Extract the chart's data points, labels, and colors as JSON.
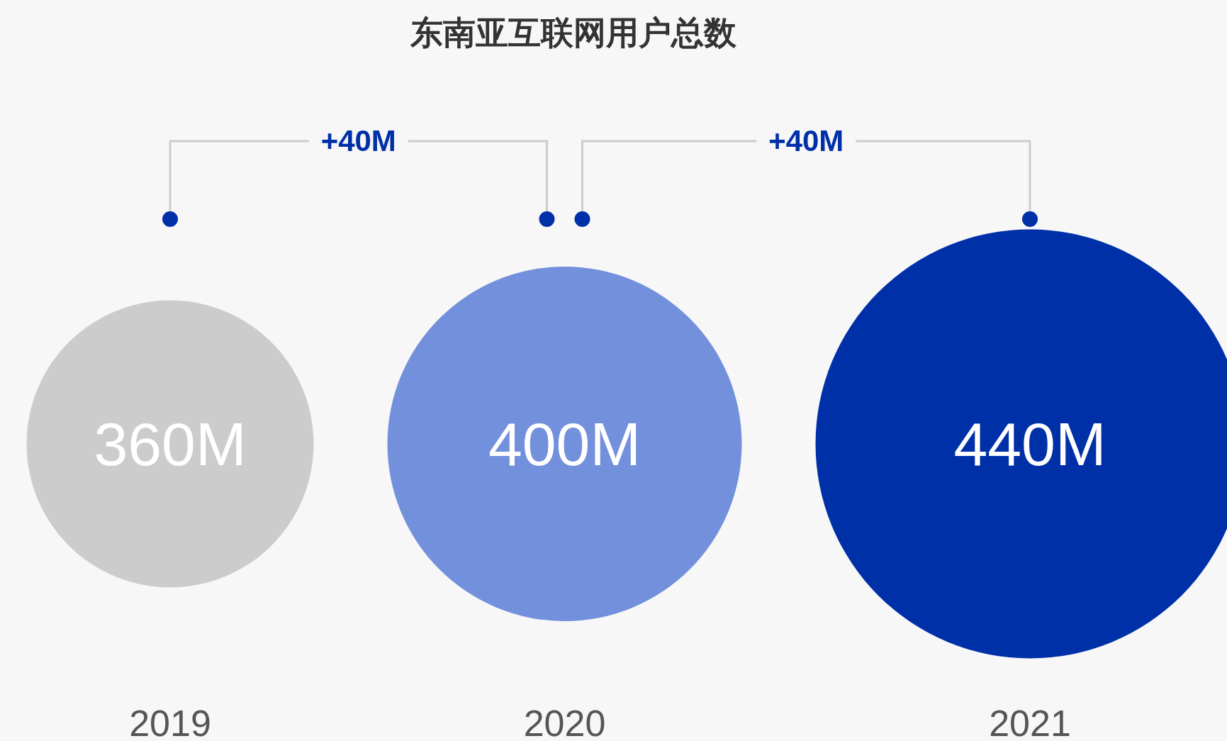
{
  "chart_data": {
    "type": "other",
    "title": "东南亚互联网用户总数",
    "categories": [
      "2019",
      "2020",
      "2021"
    ],
    "values": [
      360,
      400,
      440
    ],
    "value_labels": [
      "360M",
      "400M",
      "440M"
    ],
    "colors": [
      "#cccccc",
      "#7390dc",
      "#0030a8"
    ],
    "annotations": [
      "+40M",
      "+40M"
    ]
  }
}
